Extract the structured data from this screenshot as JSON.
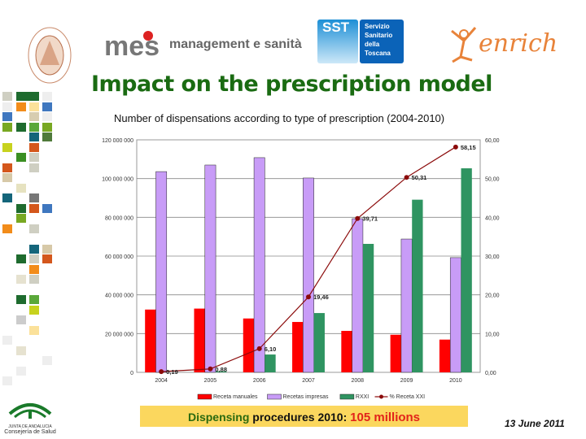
{
  "header": {
    "logos": [
      "Scuola Superiore Sant'Anna Pisa",
      "MeS management e sanità",
      "SST Servizio Sanitario della Toscana",
      "enrich"
    ],
    "mes_text": "management e sanità",
    "sst_short": "SST",
    "sst_text": [
      "Servizio",
      "Sanitario",
      "della",
      "Toscana"
    ],
    "enrich_text": "enrich"
  },
  "title": "Impact on the prescription model",
  "footer": {
    "banner": {
      "part1": "Dispensing",
      "part2": " procedures 2010",
      "part3": ": ",
      "part4": "105 millions"
    },
    "date": "13 June 2011",
    "junta_logo": [
      "JUNTA DE ANDALUCIA",
      "Consejería de Salud"
    ]
  },
  "colors": {
    "manual": "#ff0000",
    "impresas": "#c89cf7",
    "rxxi": "#2f9461",
    "line": "#8b0a0a",
    "title": "#1a6b12",
    "banner": "#fbd75e"
  },
  "chart_data": {
    "type": "bar",
    "title": "Number of dispensations according to type of prescription (2004-2010)",
    "categories": [
      "2004",
      "2005",
      "2006",
      "2007",
      "2008",
      "2009",
      "2010"
    ],
    "series": [
      {
        "name": "Receta manuales",
        "type": "bar",
        "values": [
          32400000,
          32900000,
          27800000,
          26000000,
          21400000,
          19400000,
          16900000
        ]
      },
      {
        "name": "Recetas impresas",
        "type": "bar",
        "values": [
          103600000,
          107000000,
          110800000,
          100300000,
          79300000,
          68800000,
          59200000
        ]
      },
      {
        "name": "RXXI",
        "type": "bar",
        "values": [
          0,
          500000,
          9200000,
          30600000,
          66300000,
          89100000,
          105300000
        ]
      },
      {
        "name": "% Receta XXI",
        "type": "line",
        "axis": "right",
        "values": [
          0.19,
          0.88,
          6.1,
          19.46,
          39.71,
          50.31,
          58.15
        ],
        "labels": [
          "0,19",
          "0,88",
          "6,10",
          "19,46",
          "39,71",
          "50,31",
          "58,15"
        ]
      }
    ],
    "ylim": [
      0,
      120000000
    ],
    "yticks": [
      "0",
      "20 000 000",
      "40 000 000",
      "60 000 000",
      "80 000 000",
      "100 000 000",
      "120 000 000"
    ],
    "y2lim": [
      0,
      60
    ],
    "y2ticks": [
      "0,00",
      "10,00",
      "20,00",
      "30,00",
      "40,00",
      "50,00",
      "60,00"
    ],
    "grid": true,
    "legend": "bottom"
  }
}
